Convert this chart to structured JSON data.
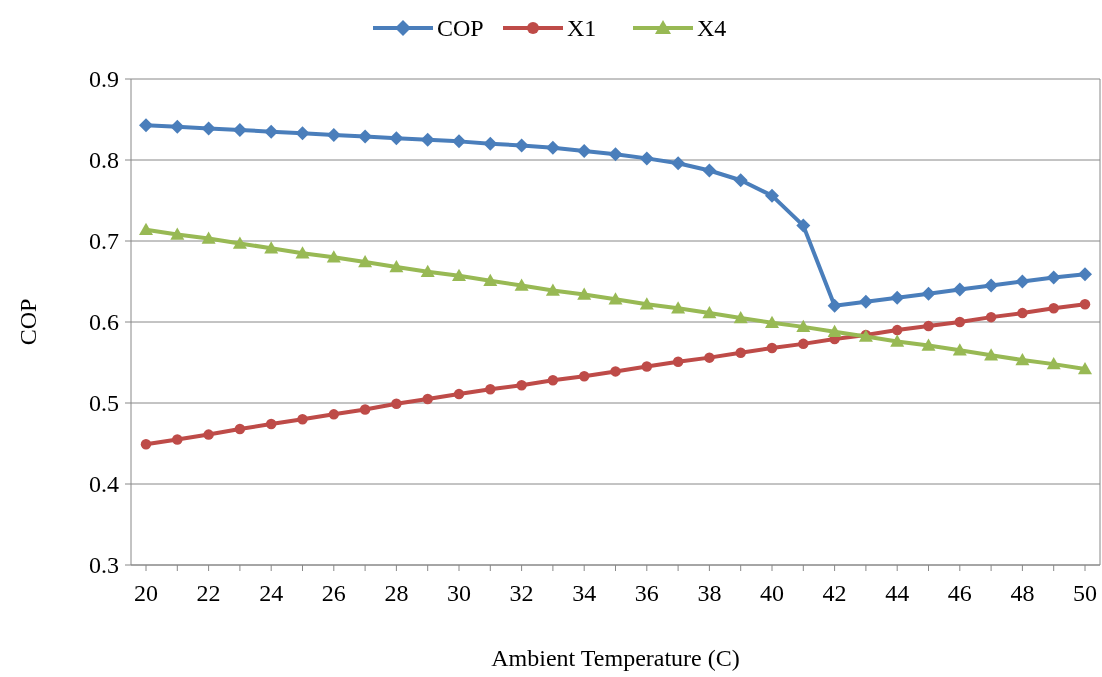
{
  "chart_data": {
    "type": "line",
    "xlabel": "Ambient Temperature (C)",
    "ylabel": "COP",
    "categories": [
      "20",
      null,
      "22",
      null,
      "24",
      null,
      "26",
      null,
      "28",
      null,
      "30",
      null,
      "32",
      null,
      "34",
      null,
      "36",
      null,
      "38",
      null,
      "40",
      null,
      "42",
      null,
      "44",
      null,
      "46",
      null,
      "48",
      null,
      "50"
    ],
    "ylim": [
      0.3,
      0.9
    ],
    "yticks": [
      0.3,
      0.4,
      0.5,
      0.6,
      0.7,
      0.8,
      0.9
    ],
    "grid": "y",
    "legend": "top",
    "line_style": "solid",
    "series": [
      {
        "name": "COP",
        "color": "#4a7ebb",
        "marker": "diamond",
        "values": [
          0.843,
          0.841,
          0.839,
          0.837,
          0.835,
          0.833,
          0.831,
          0.829,
          0.827,
          0.825,
          0.823,
          0.82,
          0.818,
          0.815,
          0.811,
          0.807,
          0.802,
          0.796,
          0.787,
          0.775,
          0.756,
          0.719,
          0.62,
          0.625,
          0.63,
          0.635,
          0.64,
          0.645,
          0.65,
          0.655,
          0.659
        ]
      },
      {
        "name": "X1",
        "color": "#be4b48",
        "marker": "circle",
        "values": [
          0.449,
          0.455,
          0.461,
          0.468,
          0.474,
          0.48,
          0.486,
          0.492,
          0.499,
          0.505,
          0.511,
          0.517,
          0.522,
          0.528,
          0.533,
          0.539,
          0.545,
          0.551,
          0.556,
          0.562,
          0.568,
          0.573,
          0.579,
          0.584,
          0.59,
          0.595,
          0.6,
          0.606,
          0.611,
          0.617,
          0.622
        ]
      },
      {
        "name": "X4",
        "color": "#98b954",
        "marker": "triangle",
        "values": [
          0.714,
          0.708,
          0.703,
          0.697,
          0.691,
          0.685,
          0.68,
          0.674,
          0.668,
          0.662,
          0.657,
          0.651,
          0.645,
          0.639,
          0.634,
          0.628,
          0.622,
          0.617,
          0.611,
          0.605,
          0.599,
          0.594,
          0.588,
          0.582,
          0.576,
          0.571,
          0.565,
          0.559,
          0.553,
          0.548,
          0.542
        ]
      }
    ]
  }
}
